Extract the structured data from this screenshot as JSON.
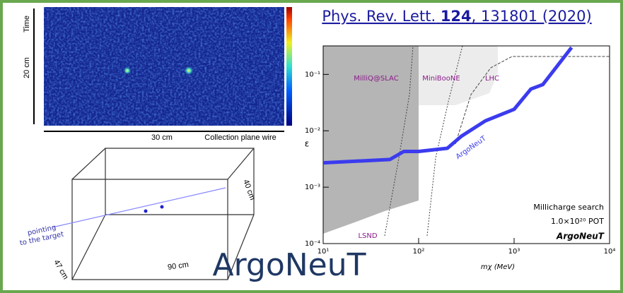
{
  "event_display": {
    "time_label": "Time",
    "vertical_scale": "20 cm",
    "horizontal_scale": "30 cm",
    "wire_label": "Collection plane wire"
  },
  "detector": {
    "pointing_label": "pointing",
    "target_label": "to the target",
    "depth": "47 cm",
    "length": "90 cm",
    "height": "40 cm"
  },
  "reference": {
    "journal": "Phys. Rev. Lett.",
    "volume": "124",
    "rest": ", 131801 (2020)"
  },
  "slide_title": "ArgoNeuT",
  "chart_data": {
    "type": "line",
    "x_label": "mχ (MeV)",
    "y_label": "ε",
    "log_x": true,
    "log_y": true,
    "xlim": [
      10,
      10000
    ],
    "ylim": [
      0.0001,
      0.32
    ],
    "xticks": [
      {
        "value": 10,
        "label": "10¹"
      },
      {
        "value": 100,
        "label": "10²"
      },
      {
        "value": 1000,
        "label": "10³"
      },
      {
        "value": 10000,
        "label": "10⁴"
      }
    ],
    "yticks": [
      {
        "value": 0.0001,
        "label": "10⁻⁴"
      },
      {
        "value": 0.001,
        "label": "10⁻³"
      },
      {
        "value": 0.01,
        "label": "10⁻²"
      },
      {
        "value": 0.1,
        "label": "10⁻¹"
      }
    ],
    "x": [
      10,
      50,
      70,
      100,
      200,
      280,
      500,
      1000,
      1500,
      2000,
      4000
    ],
    "series": [
      {
        "name": "ArgoNeuT",
        "color": "#3b3bef",
        "values": [
          0.0027,
          0.0031,
          0.0043,
          0.0043,
          0.0049,
          0.008,
          0.015,
          0.024,
          0.055,
          0.066,
          0.3
        ]
      }
    ],
    "annotations": [
      "MilliQ@SLAC",
      "MiniBooNE",
      "LHC",
      "LSND"
    ],
    "info": [
      "Millicharge search",
      "1.0×10²⁰ POT",
      "ArgoNeuT"
    ]
  }
}
